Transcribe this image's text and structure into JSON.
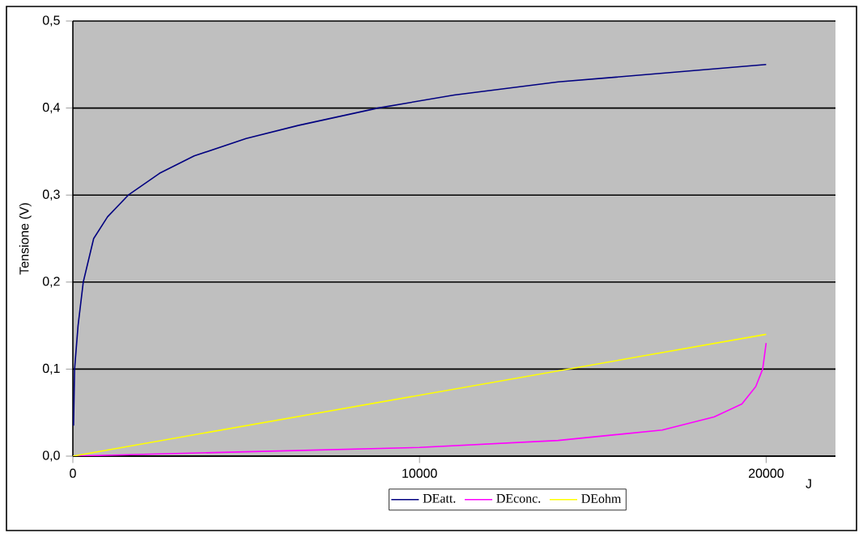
{
  "chart_data": {
    "type": "line",
    "ylabel": "Tensione (V)",
    "xlabel": "J",
    "xlim": [
      0,
      22000
    ],
    "xticks": [
      0,
      10000,
      20000
    ],
    "ylim": [
      0,
      0.5
    ],
    "yticks": [
      {
        "value": 0,
        "label": "0,0"
      },
      {
        "value": 0.1,
        "label": "0,1"
      },
      {
        "value": 0.2,
        "label": "0,2"
      },
      {
        "value": 0.3,
        "label": "0,3"
      },
      {
        "value": 0.4,
        "label": "0,4"
      },
      {
        "value": 0.5,
        "label": "0,5"
      }
    ],
    "grid": "y",
    "legend": "bottom",
    "series": [
      {
        "name": "DEatt.",
        "color": "#000080",
        "x": [
          20,
          50,
          150,
          300,
          600,
          1000,
          1600,
          2500,
          3500,
          5000,
          6500,
          8800,
          11000,
          14000,
          17000,
          20000
        ],
        "values": [
          0.035,
          0.1,
          0.15,
          0.2,
          0.25,
          0.275,
          0.3,
          0.325,
          0.345,
          0.365,
          0.38,
          0.4,
          0.415,
          0.43,
          0.44,
          0.45
        ]
      },
      {
        "name": "DEconc.",
        "color": "#ff00ff",
        "x": [
          0,
          5000,
          10000,
          14000,
          17000,
          18500,
          19300,
          19700,
          19900,
          20000
        ],
        "values": [
          0,
          0.005,
          0.01,
          0.018,
          0.03,
          0.045,
          0.06,
          0.08,
          0.1,
          0.13
        ]
      },
      {
        "name": "DEohm",
        "color": "#ffff00",
        "x": [
          0,
          20000
        ],
        "values": [
          0,
          0.14
        ]
      }
    ]
  }
}
